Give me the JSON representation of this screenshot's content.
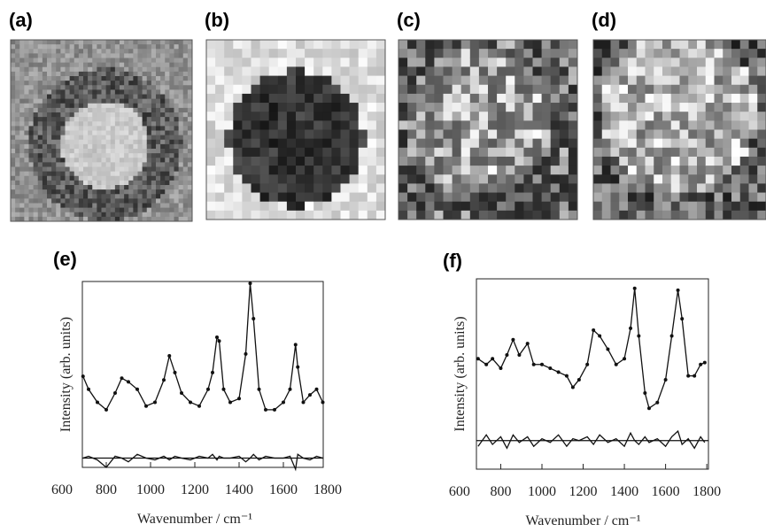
{
  "panel_labels": [
    "(a)",
    "(b)",
    "(c)",
    "(d)"
  ],
  "chart_data": [
    {
      "type": "line",
      "panel_label": "(e)",
      "xlabel": "Wavenumber / cm⁻¹",
      "ylabel": "Intensity (arb. units)",
      "xlim": [
        692,
        1780
      ],
      "xticks": [
        600,
        800,
        1000,
        1200,
        1400,
        1600,
        1800
      ],
      "ylim": [
        0,
        100
      ],
      "hline": 5,
      "x": [
        695,
        720,
        760,
        800,
        840,
        870,
        900,
        940,
        980,
        1020,
        1060,
        1085,
        1110,
        1140,
        1180,
        1220,
        1260,
        1280,
        1300,
        1310,
        1330,
        1360,
        1400,
        1430,
        1450,
        1465,
        1490,
        1520,
        1560,
        1600,
        1630,
        1655,
        1665,
        1690,
        1720,
        1750,
        1778
      ],
      "series": [
        {
          "color": "#111111",
          "markers": true,
          "values": [
            49,
            42,
            35,
            31,
            40,
            48,
            46,
            42,
            33,
            35,
            47,
            60,
            51,
            40,
            35,
            33,
            42,
            51,
            70,
            68,
            42,
            35,
            37,
            61,
            99,
            80,
            42,
            31,
            31,
            35,
            42,
            66,
            54,
            35,
            39,
            42,
            35
          ]
        },
        {
          "color": "#111111",
          "markers": false,
          "values": [
            5,
            6,
            4,
            0,
            6,
            5,
            3,
            7,
            5,
            4,
            6,
            4,
            6,
            5,
            4,
            6,
            5,
            7,
            4,
            6,
            5,
            5,
            6,
            3,
            5,
            7,
            4,
            6,
            5,
            5,
            6,
            -1,
            7,
            5,
            4,
            6,
            5
          ]
        }
      ]
    },
    {
      "type": "line",
      "panel_label": "(f)",
      "xlabel": "Wavenumber / cm⁻¹",
      "ylabel": "Intensity (arb. units)",
      "xlim": [
        682,
        1808
      ],
      "xticks": [
        600,
        800,
        1000,
        1200,
        1400,
        1600,
        1800
      ],
      "ylim": [
        0,
        100
      ],
      "hline": 15,
      "x": [
        690,
        730,
        760,
        800,
        830,
        860,
        890,
        930,
        960,
        1000,
        1040,
        1080,
        1120,
        1150,
        1180,
        1220,
        1250,
        1280,
        1320,
        1360,
        1400,
        1430,
        1450,
        1470,
        1500,
        1520,
        1560,
        1600,
        1630,
        1660,
        1680,
        1710,
        1740,
        1770,
        1790
      ],
      "series": [
        {
          "color": "#111111",
          "markers": true,
          "values": [
            58,
            55,
            58,
            53,
            60,
            68,
            60,
            66,
            55,
            55,
            53,
            51,
            49,
            43,
            47,
            55,
            73,
            70,
            63,
            55,
            58,
            74,
            95,
            70,
            40,
            32,
            35,
            47,
            70,
            94,
            79,
            49,
            49,
            55,
            56
          ]
        },
        {
          "color": "#111111",
          "markers": false,
          "values": [
            12,
            18,
            13,
            17,
            11,
            18,
            14,
            17,
            12,
            16,
            14,
            18,
            12,
            16,
            15,
            17,
            13,
            18,
            14,
            16,
            12,
            19,
            15,
            13,
            17,
            14,
            16,
            12,
            17,
            20,
            13,
            16,
            11,
            17,
            14
          ]
        }
      ]
    }
  ]
}
